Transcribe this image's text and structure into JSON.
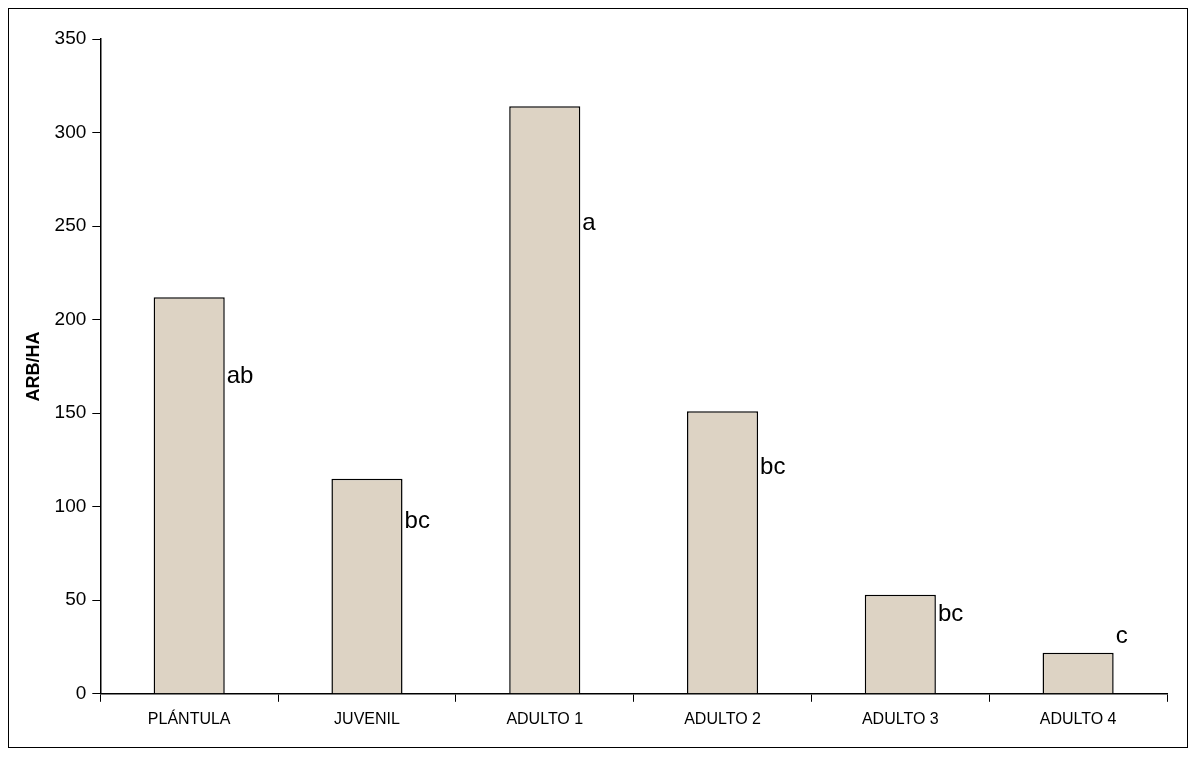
{
  "chart_data": {
    "type": "bar",
    "ylabel": "ARB/HA",
    "categories": [
      "PLÁNTULA",
      "JUVENIL",
      "ADULTO 1",
      "ADULTO 2",
      "ADULTO 3",
      "ADULTO 4"
    ],
    "values": [
      212,
      115,
      314,
      151,
      53,
      22
    ],
    "color": "#ddd3c4",
    "ylim": [
      0,
      350
    ],
    "yticks": [
      0,
      50,
      100,
      150,
      200,
      250,
      300,
      350
    ],
    "grid": false,
    "legend": false,
    "annotations": [
      "ab",
      "bc",
      "a",
      "bc",
      "bc",
      "c"
    ]
  }
}
